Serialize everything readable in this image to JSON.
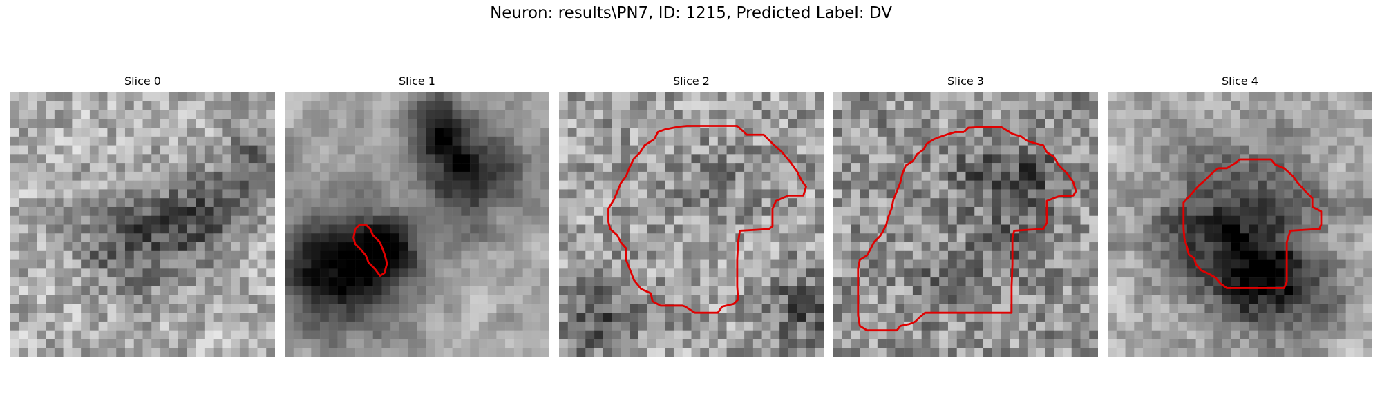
{
  "figure": {
    "title": "Neuron: results\\PN7, ID: 1215, Predicted Label: DV",
    "contour_color": "#e00000"
  },
  "slices": [
    {
      "title": "Slice 0"
    },
    {
      "title": "Slice 1"
    },
    {
      "title": "Slice 2"
    },
    {
      "title": "Slice 3"
    },
    {
      "title": "Slice 4"
    }
  ]
}
